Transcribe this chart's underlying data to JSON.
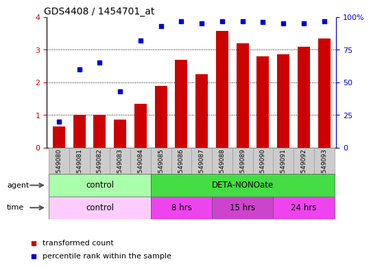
{
  "title": "GDS4408 / 1454701_at",
  "samples": [
    "GSM549080",
    "GSM549081",
    "GSM549082",
    "GSM549083",
    "GSM549084",
    "GSM549085",
    "GSM549086",
    "GSM549087",
    "GSM549088",
    "GSM549089",
    "GSM549090",
    "GSM549091",
    "GSM549092",
    "GSM549093"
  ],
  "bar_values": [
    0.65,
    1.0,
    1.0,
    0.85,
    1.35,
    1.9,
    2.7,
    2.25,
    3.58,
    3.2,
    2.8,
    2.85,
    3.1,
    3.35
  ],
  "dot_values": [
    20,
    60,
    65,
    43,
    82,
    93,
    97,
    95,
    97,
    97,
    96,
    95,
    95,
    97
  ],
  "bar_color": "#cc0000",
  "dot_color": "#0000cc",
  "ylim_left": [
    0,
    4
  ],
  "ylim_right": [
    0,
    100
  ],
  "yticks_left": [
    0,
    1,
    2,
    3,
    4
  ],
  "yticks_right": [
    0,
    25,
    50,
    75,
    100
  ],
  "yticklabels_right": [
    "0",
    "25",
    "50",
    "75",
    "100%"
  ],
  "agent_groups": [
    {
      "text": "control",
      "start": 0,
      "end": 4,
      "color": "#aaffaa"
    },
    {
      "text": "DETA-NONOate",
      "start": 5,
      "end": 13,
      "color": "#44dd44"
    }
  ],
  "time_groups": [
    {
      "text": "control",
      "start": 0,
      "end": 4,
      "color": "#ffccff"
    },
    {
      "text": "8 hrs",
      "start": 5,
      "end": 7,
      "color": "#ee44ee"
    },
    {
      "text": "15 hrs",
      "start": 8,
      "end": 10,
      "color": "#cc44cc"
    },
    {
      "text": "24 hrs",
      "start": 11,
      "end": 13,
      "color": "#ee44ee"
    }
  ],
  "legend_items": [
    {
      "label": "transformed count",
      "color": "#cc0000"
    },
    {
      "label": "percentile rank within the sample",
      "color": "#0000cc"
    }
  ],
  "bg_color": "#ffffff",
  "tick_color_left": "#cc0000",
  "tick_color_right": "#0000cc",
  "sample_bg_color": "#cccccc",
  "sample_edge_color": "#999999"
}
